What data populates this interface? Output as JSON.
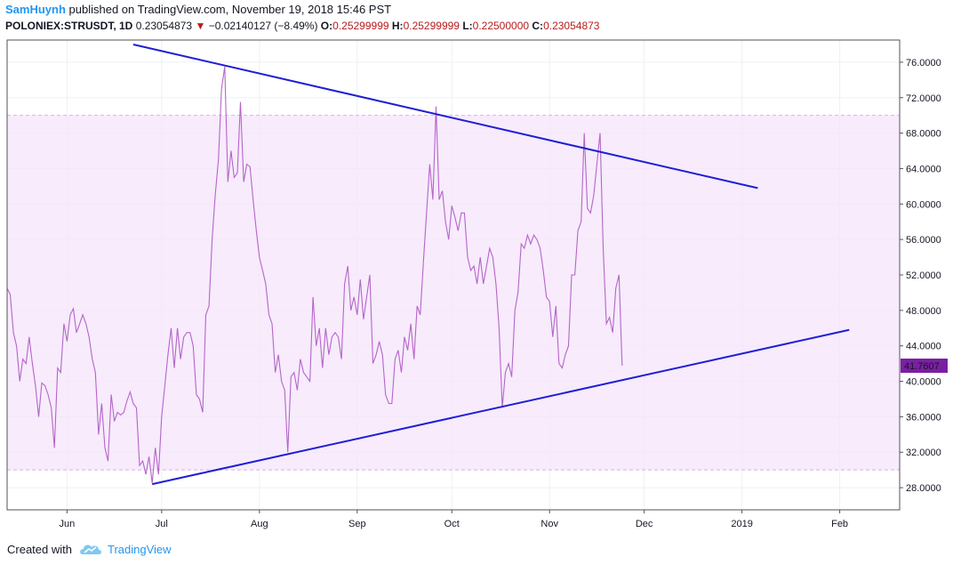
{
  "header": {
    "author": "SamHuynh",
    "published": "published on TradingView.com, November 19, 2018 15:46 PST",
    "symbol": "POLONIEX:STRUSDT, 1D",
    "last": "0.23054873",
    "change_arrow": "▼",
    "change": "−0.02140127 (−8.49%)",
    "open_label": "O:",
    "open": "0.25299999",
    "high_label": "H:",
    "high": "0.25299999",
    "low_label": "L:",
    "low": "0.22500000",
    "close_label": "C:",
    "close": "0.23054873"
  },
  "footer": {
    "created_with": "Created with",
    "brand": "TradingView",
    "logo_icon": "tradingview-cloud-icon"
  },
  "colors": {
    "line": "#b565c9",
    "trend": "#1f1fd4",
    "band": "#f5e6fb",
    "band_border": "#d9b0e6",
    "badge": "#7b1fa2"
  },
  "chart_data": {
    "type": "line",
    "x_ticks": [
      "Jun",
      "Jul",
      "Aug",
      "Sep",
      "Oct",
      "Nov",
      "Dec",
      "2019",
      "Feb"
    ],
    "y_ticks": [
      "76.0000",
      "72.0000",
      "68.0000",
      "64.0000",
      "60.0000",
      "56.0000",
      "52.0000",
      "48.0000",
      "44.0000",
      "40.0000",
      "36.0000",
      "32.0000",
      "28.0000"
    ],
    "ylim": [
      25.5,
      78.5
    ],
    "xlim": [
      "2018-05-13",
      "2019-02-20"
    ],
    "last_value_label": "41.7607",
    "band": [
      30.0,
      70.0
    ],
    "series": [
      {
        "values": [
          [
            "2018-05-13",
            50.5
          ],
          [
            "2018-05-14",
            49.8
          ],
          [
            "2018-05-15",
            45.5
          ],
          [
            "2018-05-16",
            44
          ],
          [
            "2018-05-17",
            40
          ],
          [
            "2018-05-18",
            42.5
          ],
          [
            "2018-05-19",
            42
          ],
          [
            "2018-05-20",
            45
          ],
          [
            "2018-05-21",
            42
          ],
          [
            "2018-05-22",
            39.5
          ],
          [
            "2018-05-23",
            36
          ],
          [
            "2018-05-24",
            39.8
          ],
          [
            "2018-05-25",
            39.5
          ],
          [
            "2018-05-26",
            38.5
          ],
          [
            "2018-05-27",
            37
          ],
          [
            "2018-05-28",
            32.5
          ],
          [
            "2018-05-29",
            41.5
          ],
          [
            "2018-05-30",
            41
          ],
          [
            "2018-05-31",
            46.5
          ],
          [
            "2018-06-01",
            44.5
          ],
          [
            "2018-06-02",
            47.5
          ],
          [
            "2018-06-03",
            48.2
          ],
          [
            "2018-06-04",
            45.5
          ],
          [
            "2018-06-05",
            46.5
          ],
          [
            "2018-06-06",
            47.5
          ],
          [
            "2018-06-07",
            46.5
          ],
          [
            "2018-06-08",
            45
          ],
          [
            "2018-06-09",
            42.5
          ],
          [
            "2018-06-10",
            41
          ],
          [
            "2018-06-11",
            34
          ],
          [
            "2018-06-12",
            37.5
          ],
          [
            "2018-06-13",
            32.5
          ],
          [
            "2018-06-14",
            31
          ],
          [
            "2018-06-15",
            38.5
          ],
          [
            "2018-06-16",
            35.5
          ],
          [
            "2018-06-17",
            36.5
          ],
          [
            "2018-06-18",
            36.2
          ],
          [
            "2018-06-19",
            36.5
          ],
          [
            "2018-06-20",
            37.8
          ],
          [
            "2018-06-21",
            38.8
          ],
          [
            "2018-06-22",
            37.5
          ],
          [
            "2018-06-23",
            37
          ],
          [
            "2018-06-24",
            30.5
          ],
          [
            "2018-06-25",
            31
          ],
          [
            "2018-06-26",
            29.5
          ],
          [
            "2018-06-27",
            31.5
          ],
          [
            "2018-06-28",
            28.5
          ],
          [
            "2018-06-29",
            32.5
          ],
          [
            "2018-06-30",
            29.5
          ],
          [
            "2018-07-01",
            36
          ],
          [
            "2018-07-02",
            39.5
          ],
          [
            "2018-07-03",
            43
          ],
          [
            "2018-07-04",
            46
          ],
          [
            "2018-07-05",
            41.5
          ],
          [
            "2018-07-06",
            46
          ],
          [
            "2018-07-07",
            42.5
          ],
          [
            "2018-07-08",
            45
          ],
          [
            "2018-07-09",
            45.5
          ],
          [
            "2018-07-10",
            45.5
          ],
          [
            "2018-07-11",
            44
          ],
          [
            "2018-07-12",
            38.5
          ],
          [
            "2018-07-13",
            38
          ],
          [
            "2018-07-14",
            36.5
          ],
          [
            "2018-07-15",
            47.5
          ],
          [
            "2018-07-16",
            48.5
          ],
          [
            "2018-07-17",
            56
          ],
          [
            "2018-07-18",
            61
          ],
          [
            "2018-07-19",
            65
          ],
          [
            "2018-07-20",
            73
          ],
          [
            "2018-07-21",
            75.5
          ],
          [
            "2018-07-22",
            62.5
          ],
          [
            "2018-07-23",
            66
          ],
          [
            "2018-07-24",
            63
          ],
          [
            "2018-07-25",
            63.5
          ],
          [
            "2018-07-26",
            71.5
          ],
          [
            "2018-07-27",
            62.5
          ],
          [
            "2018-07-28",
            64.5
          ],
          [
            "2018-07-29",
            64.2
          ],
          [
            "2018-07-30",
            60.5
          ],
          [
            "2018-07-31",
            57
          ],
          [
            "2018-08-01",
            54
          ],
          [
            "2018-08-02",
            52.5
          ],
          [
            "2018-08-03",
            51
          ],
          [
            "2018-08-04",
            47.5
          ],
          [
            "2018-08-05",
            46.5
          ],
          [
            "2018-08-06",
            41
          ],
          [
            "2018-08-07",
            43
          ],
          [
            "2018-08-08",
            40
          ],
          [
            "2018-08-09",
            39
          ],
          [
            "2018-08-10",
            32
          ],
          [
            "2018-08-11",
            40.5
          ],
          [
            "2018-08-12",
            41
          ],
          [
            "2018-08-13",
            39
          ],
          [
            "2018-08-14",
            42.5
          ],
          [
            "2018-08-15",
            41
          ],
          [
            "2018-08-16",
            40.5
          ],
          [
            "2018-08-17",
            40
          ],
          [
            "2018-08-18",
            49.5
          ],
          [
            "2018-08-19",
            44
          ],
          [
            "2018-08-20",
            46
          ],
          [
            "2018-08-21",
            41.5
          ],
          [
            "2018-08-22",
            46
          ],
          [
            "2018-08-23",
            43
          ],
          [
            "2018-08-24",
            45
          ],
          [
            "2018-08-25",
            45.5
          ],
          [
            "2018-08-26",
            45
          ],
          [
            "2018-08-27",
            42.5
          ],
          [
            "2018-08-28",
            51
          ],
          [
            "2018-08-29",
            53
          ],
          [
            "2018-08-30",
            48
          ],
          [
            "2018-08-31",
            49.5
          ],
          [
            "2018-09-01",
            47.5
          ],
          [
            "2018-09-02",
            51.5
          ],
          [
            "2018-09-03",
            47
          ],
          [
            "2018-09-04",
            49.5
          ],
          [
            "2018-09-05",
            52
          ],
          [
            "2018-09-06",
            42
          ],
          [
            "2018-09-07",
            43
          ],
          [
            "2018-09-08",
            44.5
          ],
          [
            "2018-09-09",
            43
          ],
          [
            "2018-09-10",
            38.5
          ],
          [
            "2018-09-11",
            37.5
          ],
          [
            "2018-09-12",
            37.5
          ],
          [
            "2018-09-13",
            42.5
          ],
          [
            "2018-09-14",
            43.5
          ],
          [
            "2018-09-15",
            41
          ],
          [
            "2018-09-16",
            45
          ],
          [
            "2018-09-17",
            43.5
          ],
          [
            "2018-09-18",
            46.5
          ],
          [
            "2018-09-19",
            42.5
          ],
          [
            "2018-09-20",
            48.5
          ],
          [
            "2018-09-21",
            47.5
          ],
          [
            "2018-09-22",
            53.5
          ],
          [
            "2018-09-23",
            59
          ],
          [
            "2018-09-24",
            64.5
          ],
          [
            "2018-09-25",
            60.5
          ],
          [
            "2018-09-26",
            71
          ],
          [
            "2018-09-27",
            60.5
          ],
          [
            "2018-09-28",
            61.5
          ],
          [
            "2018-09-29",
            58
          ],
          [
            "2018-09-30",
            56
          ],
          [
            "2018-10-01",
            59.8
          ],
          [
            "2018-10-02",
            58.5
          ],
          [
            "2018-10-03",
            57
          ],
          [
            "2018-10-04",
            59
          ],
          [
            "2018-10-05",
            59
          ],
          [
            "2018-10-06",
            54
          ],
          [
            "2018-10-07",
            52.5
          ],
          [
            "2018-10-08",
            53
          ],
          [
            "2018-10-09",
            51
          ],
          [
            "2018-10-10",
            54
          ],
          [
            "2018-10-11",
            51
          ],
          [
            "2018-10-12",
            53
          ],
          [
            "2018-10-13",
            55
          ],
          [
            "2018-10-14",
            54
          ],
          [
            "2018-10-15",
            51
          ],
          [
            "2018-10-16",
            46
          ],
          [
            "2018-10-17",
            37
          ],
          [
            "2018-10-18",
            41
          ],
          [
            "2018-10-19",
            42
          ],
          [
            "2018-10-20",
            40.5
          ],
          [
            "2018-10-21",
            48
          ],
          [
            "2018-10-22",
            50
          ],
          [
            "2018-10-23",
            55.5
          ],
          [
            "2018-10-24",
            55
          ],
          [
            "2018-10-25",
            56.5
          ],
          [
            "2018-10-26",
            55.5
          ],
          [
            "2018-10-27",
            56.5
          ],
          [
            "2018-10-28",
            56
          ],
          [
            "2018-10-29",
            55
          ],
          [
            "2018-10-30",
            52.5
          ],
          [
            "2018-10-31",
            49.5
          ],
          [
            "2018-11-01",
            49
          ],
          [
            "2018-11-02",
            45
          ],
          [
            "2018-11-03",
            48.5
          ],
          [
            "2018-11-04",
            42
          ],
          [
            "2018-11-05",
            41.5
          ],
          [
            "2018-11-06",
            43
          ],
          [
            "2018-11-07",
            44
          ],
          [
            "2018-11-08",
            52
          ],
          [
            "2018-11-09",
            52
          ],
          [
            "2018-11-10",
            57
          ],
          [
            "2018-11-11",
            58
          ],
          [
            "2018-11-12",
            68
          ],
          [
            "2018-11-13",
            59.5
          ],
          [
            "2018-11-14",
            59
          ],
          [
            "2018-11-15",
            61
          ],
          [
            "2018-11-16",
            64.5
          ],
          [
            "2018-11-17",
            68
          ],
          [
            "2018-11-18",
            55
          ],
          [
            "2018-11-19",
            46.5
          ],
          [
            "2018-11-20",
            47.2
          ],
          [
            "2018-11-21",
            45.5
          ],
          [
            "2018-11-22",
            50.5
          ],
          [
            "2018-11-23",
            52
          ],
          [
            "2018-11-24",
            41.76
          ]
        ]
      }
    ],
    "trendlines": [
      {
        "points": [
          [
            "2018-06-22",
            78.0
          ],
          [
            "2019-01-06",
            61.8
          ]
        ]
      },
      {
        "points": [
          [
            "2018-06-28",
            28.4
          ],
          [
            "2019-02-04",
            45.8
          ]
        ]
      }
    ]
  }
}
